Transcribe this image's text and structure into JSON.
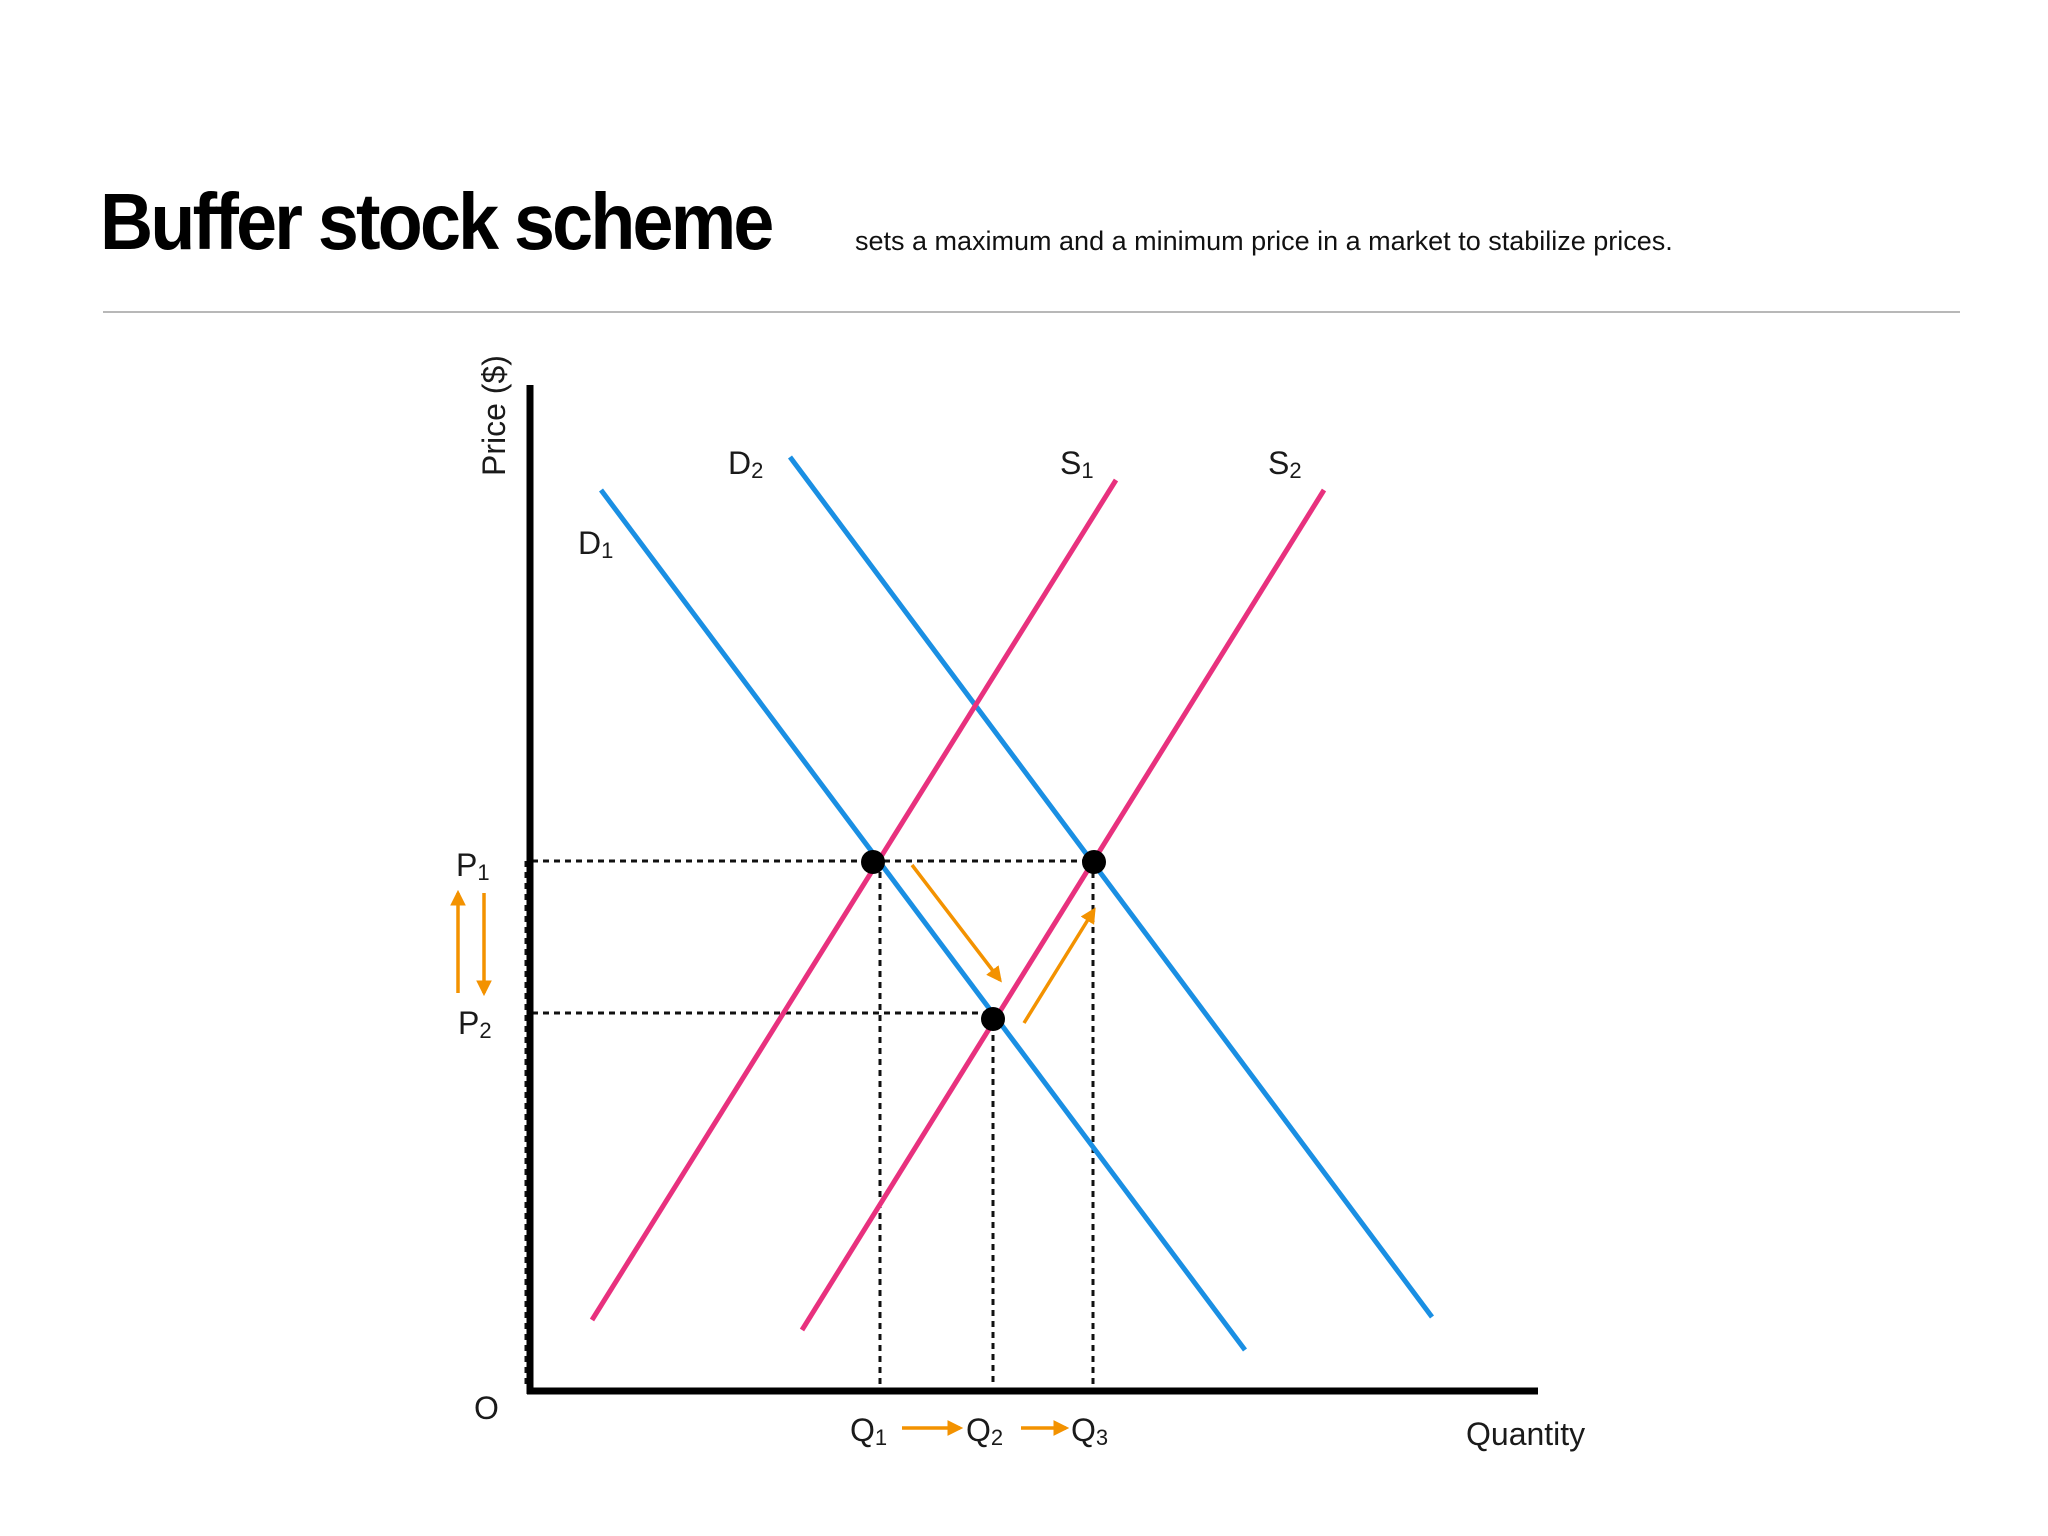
{
  "header": {
    "title": "Buffer stock scheme",
    "subtitle": "sets a maximum and a minimum price in a market to stabilize prices."
  },
  "axes": {
    "y_label": "Price ($)",
    "x_label": "Quantity",
    "origin_label": "O"
  },
  "curves": {
    "d1": {
      "letter": "D",
      "sub": "1"
    },
    "d2": {
      "letter": "D",
      "sub": "2"
    },
    "s1": {
      "letter": "S",
      "sub": "1"
    },
    "s2": {
      "letter": "S",
      "sub": "2"
    }
  },
  "prices": {
    "p1": {
      "letter": "P",
      "sub": "1"
    },
    "p2": {
      "letter": "P",
      "sub": "2"
    }
  },
  "quantities": {
    "q1": {
      "letter": "Q",
      "sub": "1"
    },
    "q2": {
      "letter": "Q",
      "sub": "2"
    },
    "q3": {
      "letter": "Q",
      "sub": "3"
    }
  },
  "colors": {
    "demand": "#1a8fe3",
    "supply": "#e8317e",
    "arrow": "#f39200",
    "axis": "#000000",
    "guide": "#111111",
    "point": "#000000"
  }
}
